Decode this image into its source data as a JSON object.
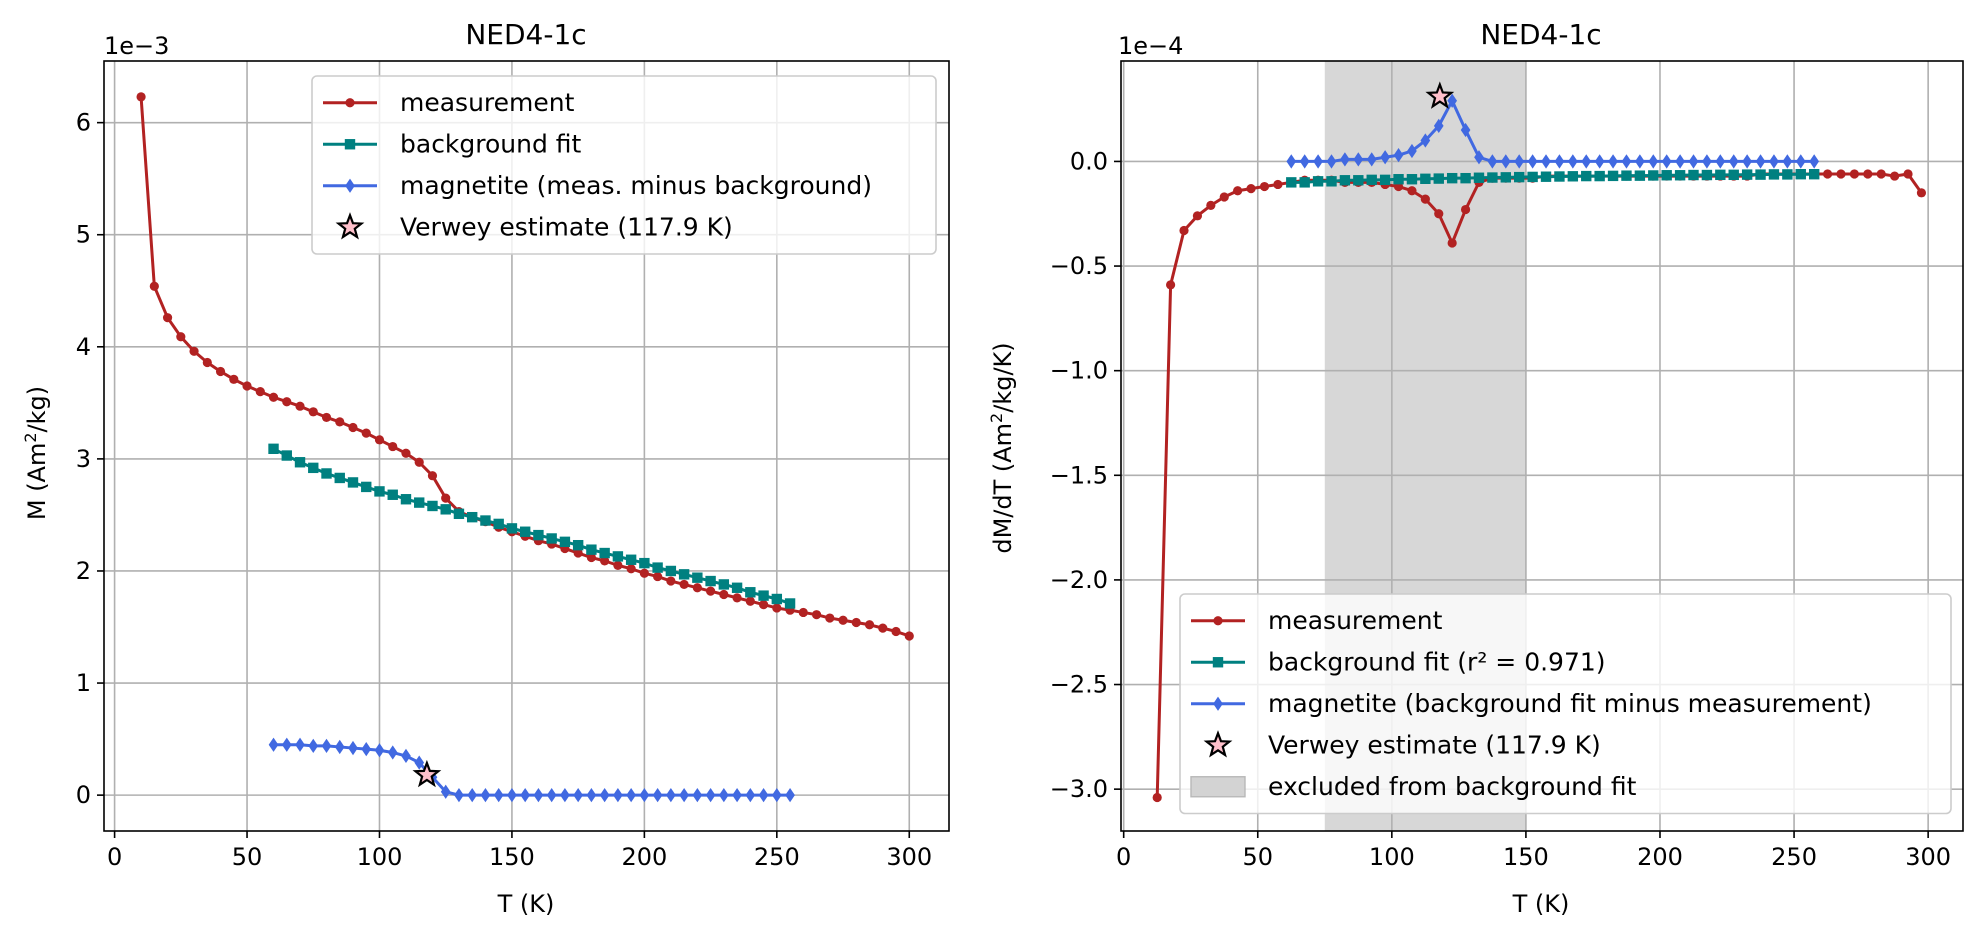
{
  "chart_data": [
    {
      "type": "line",
      "title": "NED4-1c",
      "xlabel": "T (K)",
      "ylabel_main": "M (Am",
      "ylabel_sup": "2",
      "ylabel_tail": "/kg)",
      "offset_text": "1e−3",
      "xlim": [
        -4,
        315
      ],
      "ylim": [
        -0.32,
        6.55
      ],
      "scale": 0.001,
      "grid": true,
      "legend_position": "upper-right",
      "xticks": [
        0,
        50,
        100,
        150,
        200,
        250,
        300
      ],
      "xtick_labels": [
        "0",
        "50",
        "100",
        "150",
        "200",
        "250",
        "300"
      ],
      "yticks": [
        0,
        1,
        2,
        3,
        4,
        5,
        6
      ],
      "ytick_labels": [
        "0",
        "1",
        "2",
        "3",
        "4",
        "5",
        "6"
      ],
      "series": [
        {
          "name": "measurement",
          "marker": "circle",
          "color": "#b22222",
          "x": [
            10,
            15,
            20,
            25,
            30,
            35,
            40,
            45,
            50,
            55,
            60,
            65,
            70,
            75,
            80,
            85,
            90,
            95,
            100,
            105,
            110,
            115,
            120,
            125,
            130,
            135,
            140,
            145,
            150,
            155,
            160,
            165,
            170,
            175,
            180,
            185,
            190,
            195,
            200,
            205,
            210,
            215,
            220,
            225,
            230,
            235,
            240,
            245,
            250,
            255,
            260,
            265,
            270,
            275,
            280,
            285,
            290,
            295,
            300
          ],
          "values": [
            6.23,
            4.54,
            4.26,
            4.09,
            3.96,
            3.86,
            3.78,
            3.71,
            3.65,
            3.6,
            3.55,
            3.51,
            3.47,
            3.42,
            3.37,
            3.33,
            3.28,
            3.23,
            3.17,
            3.11,
            3.05,
            2.97,
            2.85,
            2.65,
            2.53,
            2.48,
            2.44,
            2.39,
            2.35,
            2.31,
            2.27,
            2.24,
            2.2,
            2.16,
            2.12,
            2.09,
            2.05,
            2.02,
            1.98,
            1.95,
            1.91,
            1.88,
            1.85,
            1.82,
            1.79,
            1.76,
            1.73,
            1.7,
            1.67,
            1.65,
            1.63,
            1.61,
            1.58,
            1.56,
            1.54,
            1.52,
            1.49,
            1.46,
            1.42
          ]
        },
        {
          "name": "background fit",
          "marker": "square",
          "color": "#008080",
          "x": [
            60,
            65,
            70,
            75,
            80,
            85,
            90,
            95,
            100,
            105,
            110,
            115,
            120,
            125,
            130,
            135,
            140,
            145,
            150,
            155,
            160,
            165,
            170,
            175,
            180,
            185,
            190,
            195,
            200,
            205,
            210,
            215,
            220,
            225,
            230,
            235,
            240,
            245,
            250,
            255
          ],
          "values": [
            3.09,
            3.03,
            2.97,
            2.92,
            2.87,
            2.83,
            2.79,
            2.75,
            2.71,
            2.68,
            2.64,
            2.61,
            2.58,
            2.55,
            2.51,
            2.48,
            2.45,
            2.42,
            2.38,
            2.35,
            2.32,
            2.29,
            2.26,
            2.23,
            2.19,
            2.16,
            2.13,
            2.1,
            2.07,
            2.03,
            2.0,
            1.97,
            1.94,
            1.91,
            1.88,
            1.85,
            1.81,
            1.78,
            1.75,
            1.71
          ]
        },
        {
          "name": "magnetite (meas. minus background)",
          "marker": "diamond",
          "color": "#4169e1",
          "x": [
            60,
            65,
            70,
            75,
            80,
            85,
            90,
            95,
            100,
            105,
            110,
            115,
            120,
            125,
            130,
            135,
            140,
            145,
            150,
            155,
            160,
            165,
            170,
            175,
            180,
            185,
            190,
            195,
            200,
            205,
            210,
            215,
            220,
            225,
            230,
            235,
            240,
            245,
            250,
            255
          ],
          "values": [
            0.45,
            0.45,
            0.45,
            0.44,
            0.44,
            0.43,
            0.42,
            0.41,
            0.4,
            0.38,
            0.35,
            0.29,
            0.16,
            0.03,
            0.0,
            0.0,
            0.0,
            0.0,
            0.0,
            0.0,
            0.0,
            0.0,
            0.0,
            0.0,
            0.0,
            0.0,
            0.0,
            0.0,
            0.0,
            0.0,
            0.0,
            0.0,
            0.0,
            0.0,
            0.0,
            0.0,
            0.0,
            0.0,
            0.0,
            0.0
          ]
        }
      ],
      "star": {
        "name": "Verwey estimate (117.9 K)",
        "x": 117.9,
        "y": 0.18,
        "color": "#ffc0cb"
      },
      "legend": [
        "measurement",
        "background fit",
        "magnetite (meas. minus background)",
        "Verwey estimate (117.9 K)"
      ]
    },
    {
      "type": "line",
      "title": "NED4-1c",
      "xlabel": "T (K)",
      "ylabel_main": "dM/dT (Am",
      "ylabel_sup": "2",
      "ylabel_tail": "/kg/K)",
      "offset_text": "1e−4",
      "xlim": [
        -1,
        313
      ],
      "ylim": [
        -3.2,
        0.48
      ],
      "scale": 0.0001,
      "grid": true,
      "legend_position": "lower-right",
      "shaded_region": {
        "name": "excluded from background fit",
        "x": [
          75,
          150
        ],
        "color": "#d3d3d3"
      },
      "xticks": [
        0,
        50,
        100,
        150,
        200,
        250,
        300
      ],
      "xtick_labels": [
        "0",
        "50",
        "100",
        "150",
        "200",
        "250",
        "300"
      ],
      "yticks": [
        0.0,
        -0.5,
        -1.0,
        -1.5,
        -2.0,
        -2.5,
        -3.0
      ],
      "ytick_labels": [
        "0.0",
        "−0.5",
        "−1.0",
        "−1.5",
        "−2.0",
        "−2.5",
        "−3.0"
      ],
      "series": [
        {
          "name": "measurement",
          "marker": "circle",
          "color": "#b22222",
          "x": [
            12.5,
            17.5,
            22.5,
            27.5,
            32.5,
            37.5,
            42.5,
            47.5,
            52.5,
            57.5,
            62.5,
            67.5,
            72.5,
            77.5,
            82.5,
            87.5,
            92.5,
            97.5,
            102.5,
            107.5,
            112.5,
            117.5,
            122.5,
            127.5,
            132.5,
            137.5,
            142.5,
            147.5,
            152.5,
            157.5,
            162.5,
            167.5,
            172.5,
            177.5,
            182.5,
            187.5,
            192.5,
            197.5,
            202.5,
            207.5,
            212.5,
            217.5,
            222.5,
            227.5,
            232.5,
            237.5,
            242.5,
            247.5,
            252.5,
            257.5,
            262.5,
            267.5,
            272.5,
            277.5,
            282.5,
            287.5,
            292.5,
            297.5
          ],
          "values": [
            -3.04,
            -0.59,
            -0.33,
            -0.26,
            -0.21,
            -0.17,
            -0.14,
            -0.13,
            -0.12,
            -0.11,
            -0.1,
            -0.09,
            -0.09,
            -0.09,
            -0.1,
            -0.1,
            -0.1,
            -0.11,
            -0.12,
            -0.14,
            -0.18,
            -0.25,
            -0.39,
            -0.23,
            -0.1,
            -0.08,
            -0.08,
            -0.08,
            -0.08,
            -0.07,
            -0.07,
            -0.07,
            -0.07,
            -0.07,
            -0.07,
            -0.07,
            -0.07,
            -0.07,
            -0.07,
            -0.07,
            -0.07,
            -0.07,
            -0.07,
            -0.07,
            -0.07,
            -0.06,
            -0.06,
            -0.06,
            -0.06,
            -0.06,
            -0.06,
            -0.06,
            -0.06,
            -0.06,
            -0.06,
            -0.07,
            -0.06,
            -0.15
          ]
        },
        {
          "name": "background fit (r² = 0.971)",
          "marker": "square",
          "color": "#008080",
          "x": [
            62.5,
            67.5,
            72.5,
            77.5,
            82.5,
            87.5,
            92.5,
            97.5,
            102.5,
            107.5,
            112.5,
            117.5,
            122.5,
            127.5,
            132.5,
            137.5,
            142.5,
            147.5,
            152.5,
            157.5,
            162.5,
            167.5,
            172.5,
            177.5,
            182.5,
            187.5,
            192.5,
            197.5,
            202.5,
            207.5,
            212.5,
            217.5,
            222.5,
            227.5,
            232.5,
            237.5,
            242.5,
            247.5,
            252.5,
            257.5
          ],
          "values": [
            -0.1,
            -0.1,
            -0.095,
            -0.095,
            -0.09,
            -0.09,
            -0.088,
            -0.088,
            -0.085,
            -0.085,
            -0.083,
            -0.082,
            -0.08,
            -0.08,
            -0.078,
            -0.077,
            -0.076,
            -0.075,
            -0.074,
            -0.073,
            -0.072,
            -0.071,
            -0.07,
            -0.07,
            -0.069,
            -0.068,
            -0.068,
            -0.067,
            -0.066,
            -0.066,
            -0.065,
            -0.065,
            -0.064,
            -0.064,
            -0.063,
            -0.063,
            -0.062,
            -0.062,
            -0.061,
            -0.061
          ]
        },
        {
          "name": "magnetite (background fit minus measurement)",
          "marker": "diamond",
          "color": "#4169e1",
          "x": [
            62.5,
            67.5,
            72.5,
            77.5,
            82.5,
            87.5,
            92.5,
            97.5,
            102.5,
            107.5,
            112.5,
            117.5,
            122.5,
            127.5,
            132.5,
            137.5,
            142.5,
            147.5,
            152.5,
            157.5,
            162.5,
            167.5,
            172.5,
            177.5,
            182.5,
            187.5,
            192.5,
            197.5,
            202.5,
            207.5,
            212.5,
            217.5,
            222.5,
            227.5,
            232.5,
            237.5,
            242.5,
            247.5,
            252.5,
            257.5
          ],
          "values": [
            0.0,
            0.0,
            0.0,
            0.0,
            0.01,
            0.01,
            0.01,
            0.02,
            0.03,
            0.05,
            0.1,
            0.17,
            0.29,
            0.15,
            0.02,
            0.0,
            0.0,
            0.0,
            0.0,
            0.0,
            0.0,
            0.0,
            0.0,
            0.0,
            0.0,
            0.0,
            0.0,
            0.0,
            0.0,
            0.0,
            0.0,
            0.0,
            0.0,
            0.0,
            0.0,
            0.0,
            0.0,
            0.0,
            0.0,
            0.0
          ]
        }
      ],
      "star": {
        "name": "Verwey estimate (117.9 K)",
        "x": 117.9,
        "y": 0.31,
        "color": "#ffc0cb"
      },
      "legend": [
        "measurement",
        "background fit (r² = 0.971)",
        "magnetite (background fit minus measurement)",
        "Verwey estimate (117.9 K)",
        "excluded from background fit"
      ]
    }
  ]
}
